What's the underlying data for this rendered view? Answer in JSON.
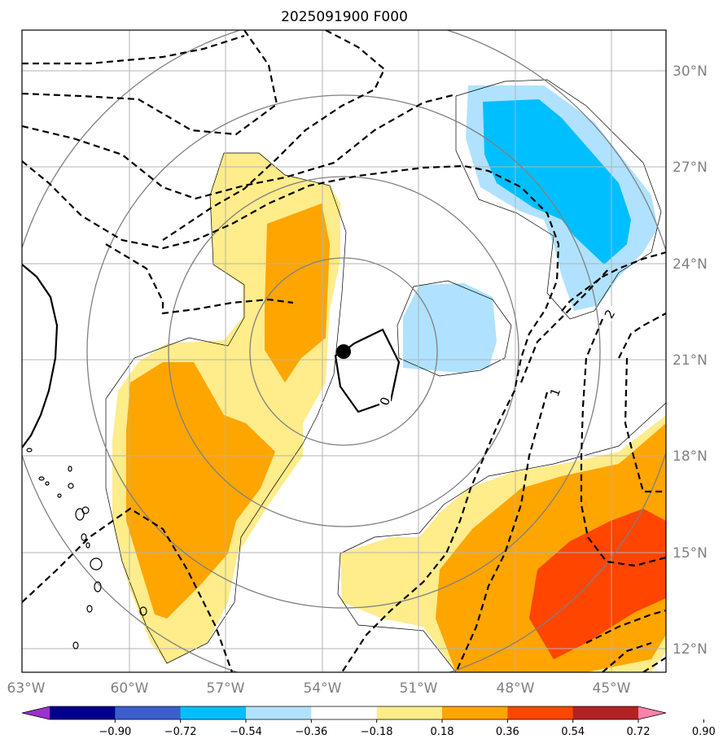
{
  "title": "2025091900 F000",
  "map": {
    "lon_range": [
      "63°W",
      "43°W"
    ],
    "lat_range": [
      "11°N",
      "31°N"
    ],
    "lon_ticks": [
      "63°W",
      "60°W",
      "57°W",
      "54°W",
      "51°W",
      "48°W",
      "45°W"
    ],
    "lat_ticks": [
      "30°N",
      "27°N",
      "24°N",
      "21°N",
      "18°N",
      "15°N",
      "12°N"
    ],
    "grid": true,
    "storm_center_marker": "filled-circle",
    "contour_labels": [
      "0",
      "1",
      "2"
    ]
  },
  "colorbar": {
    "ticks": [
      "−0.90",
      "−0.72",
      "−0.54",
      "−0.36",
      "−0.18",
      "0.18",
      "0.36",
      "0.54",
      "0.72",
      "0.90"
    ],
    "colors": [
      "#9a32cd",
      "#00008b",
      "#3a5fcd",
      "#00bfff",
      "#b0e2ff",
      "#ffffff",
      "#ffec8b",
      "#ffa500",
      "#ff4500",
      "#b22222",
      "#ff82ab"
    ],
    "extend": "both"
  }
}
